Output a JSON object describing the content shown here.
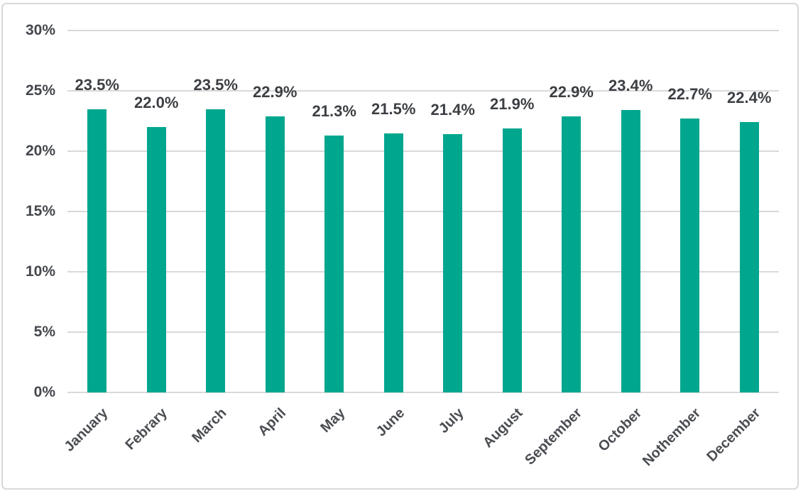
{
  "chart_data": {
    "type": "bar",
    "title": "",
    "xlabel": "",
    "ylabel": "",
    "categories": [
      "January",
      "Febrary",
      "March",
      "April",
      "May",
      "June",
      "July",
      "August",
      "September",
      "October",
      "Nothember",
      "December"
    ],
    "values": [
      23.5,
      22.0,
      23.5,
      22.9,
      21.3,
      21.5,
      21.4,
      21.9,
      22.9,
      23.4,
      22.7,
      22.4
    ],
    "value_labels": [
      "23.5%",
      "22.0%",
      "23.5%",
      "22.9%",
      "21.3%",
      "21.5%",
      "21.4%",
      "21.9%",
      "22.9%",
      "23.4%",
      "22.7%",
      "22.4%"
    ],
    "ylim": [
      0,
      30
    ],
    "ytick_step": 5,
    "ytick_labels": [
      "0%",
      "5%",
      "10%",
      "15%",
      "20%",
      "25%",
      "30%"
    ],
    "grid": true,
    "legend": false,
    "x_labels_rotation_deg": 45,
    "colors": {
      "bar": "#00A78E",
      "gridline": "#D9D9D9",
      "frame_border": "#D9D9D9",
      "value_label_text": "#3C3F43",
      "axis_tick_text": "#44474C",
      "x_label_text": "#4A4D52",
      "background": "#FFFFFF"
    }
  }
}
